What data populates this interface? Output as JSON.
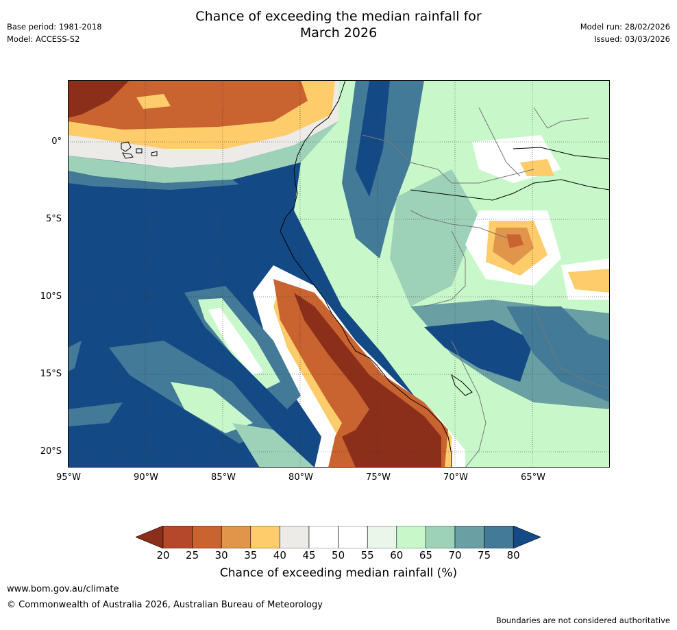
{
  "header": {
    "title_line1": "Chance of exceeding the median rainfall for",
    "title_line2": "March 2026",
    "base_period": "Base period: 1981-2018",
    "model": "Model: ACCESS-S2",
    "model_run": "Model run: 28/02/2026",
    "issued": "Issued: 03/03/2026"
  },
  "map": {
    "region": "Western South America",
    "lat_ticks": [
      "0°",
      "5°S",
      "10°S",
      "15°S",
      "20°S"
    ],
    "lon_ticks": [
      "95°W",
      "90°W",
      "85°W",
      "80°W",
      "75°W",
      "70°W",
      "65°W"
    ],
    "lat_range": [
      -21,
      4
    ],
    "lon_range": [
      -95,
      -60
    ]
  },
  "colorbar": {
    "label": "Chance of exceeding median rainfall (%)",
    "ticks": [
      "20",
      "25",
      "30",
      "35",
      "40",
      "45",
      "50",
      "55",
      "60",
      "65",
      "70",
      "75",
      "80"
    ],
    "colors": [
      "#8b2f1a",
      "#b5482a",
      "#c9632f",
      "#e0954a",
      "#fecc6a",
      "#ecebe7",
      "#ffffff",
      "#ffffff",
      "#eaf6ea",
      "#c8f8ca",
      "#9dd2b9",
      "#6a9fa4",
      "#437a97",
      "#134a86"
    ]
  },
  "footer": {
    "website": "www.bom.gov.au/climate",
    "copyright": "© Commonwealth of Australia 2026, Australian Bureau of Meteorology",
    "disclaimer": "Boundaries are not considered authoritative"
  }
}
